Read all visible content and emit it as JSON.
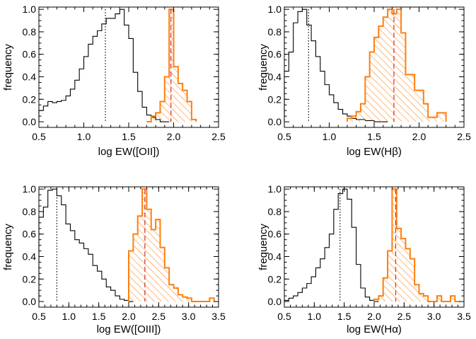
{
  "colors": {
    "black": "#000000",
    "orange": "#ff7f0e",
    "red": "#d62728"
  },
  "chart_data": [
    {
      "type": "histogram",
      "xlabel": "log EW([OII])",
      "ylabel": "frequency",
      "xlim": [
        0.5,
        2.5
      ],
      "ylim": [
        -0.05,
        1.02
      ],
      "xticks": [
        "0.5",
        "1.0",
        "1.5",
        "2.0",
        "2.5"
      ],
      "yticks": [
        "0.0",
        "0.2",
        "0.4",
        "0.6",
        "0.8",
        "1.0"
      ],
      "grid": false,
      "series": [
        {
          "x": [
            0.5,
            0.55,
            0.6,
            0.65,
            0.7,
            0.75,
            0.8,
            0.85,
            0.9,
            0.95,
            1.0,
            1.05,
            1.1,
            1.15,
            1.2,
            1.25,
            1.3,
            1.35,
            1.4,
            1.45,
            1.5,
            1.55,
            1.6,
            1.65,
            1.7,
            1.75,
            1.8,
            1.85,
            1.9
          ],
          "values": [
            0.1,
            0.14,
            0.18,
            0.17,
            0.18,
            0.19,
            0.23,
            0.29,
            0.37,
            0.47,
            0.58,
            0.69,
            0.76,
            0.81,
            0.87,
            0.92,
            0.92,
            0.96,
            1.0,
            0.86,
            0.74,
            0.44,
            0.27,
            0.13,
            0.06,
            0.04,
            0.02,
            0.0,
            0.0
          ],
          "style": "step",
          "color": "#000000"
        },
        {
          "x": [
            1.7,
            1.75,
            1.8,
            1.85,
            1.9,
            1.95,
            2.0,
            2.05,
            2.1,
            2.15,
            2.2
          ],
          "values": [
            0.0,
            0.05,
            0.08,
            0.18,
            0.4,
            1.0,
            0.49,
            0.34,
            0.28,
            0.18,
            0.02
          ],
          "style": "hatched-step",
          "color": "#ff7f0e"
        }
      ],
      "reference_lines": [
        {
          "x": 1.24,
          "style": "dotted",
          "color": "#000000"
        },
        {
          "x": 1.97,
          "style": "dashed",
          "color": "#d62728"
        }
      ]
    },
    {
      "type": "histogram",
      "xlabel": "log EW(Hβ)",
      "ylabel": "frequency",
      "xlim": [
        0.5,
        2.5
      ],
      "ylim": [
        -0.05,
        1.02
      ],
      "xticks": [
        "0.5",
        "1.0",
        "1.5",
        "2.0",
        "2.5"
      ],
      "yticks": [
        "0.0",
        "0.2",
        "0.4",
        "0.6",
        "0.8",
        "1.0"
      ],
      "grid": false,
      "series": [
        {
          "x": [
            0.5,
            0.55,
            0.6,
            0.65,
            0.7,
            0.75,
            0.8,
            0.85,
            0.9,
            0.95,
            1.0,
            1.05,
            1.1,
            1.15,
            1.2,
            1.25,
            1.3,
            1.35,
            1.4,
            1.45,
            1.5,
            1.55,
            1.6
          ],
          "values": [
            0.45,
            0.62,
            0.88,
            0.98,
            1.0,
            0.86,
            0.72,
            0.58,
            0.45,
            0.33,
            0.24,
            0.17,
            0.11,
            0.07,
            0.05,
            0.03,
            0.02,
            0.02,
            0.01,
            0.01,
            0.0,
            0.0,
            0.0
          ],
          "style": "step",
          "color": "#000000"
        },
        {
          "x": [
            1.2,
            1.25,
            1.3,
            1.35,
            1.4,
            1.45,
            1.5,
            1.55,
            1.6,
            1.65,
            1.7,
            1.75,
            1.8,
            1.85,
            1.9,
            1.95,
            2.0,
            2.05,
            2.1,
            2.15,
            2.2,
            2.25
          ],
          "values": [
            0.03,
            0.05,
            0.09,
            0.16,
            0.4,
            0.62,
            0.75,
            0.85,
            0.93,
            1.0,
            0.96,
            1.0,
            0.79,
            0.42,
            0.42,
            0.28,
            0.28,
            0.16,
            0.04,
            0.04,
            0.08,
            0.08
          ],
          "style": "hatched-step",
          "color": "#ff7f0e"
        }
      ],
      "reference_lines": [
        {
          "x": 0.77,
          "style": "dotted",
          "color": "#000000"
        },
        {
          "x": 1.72,
          "style": "dashed",
          "color": "#d62728"
        }
      ]
    },
    {
      "type": "histogram",
      "xlabel": "log EW([OIII])",
      "ylabel": "frequency",
      "xlim": [
        0.5,
        3.5
      ],
      "ylim": [
        -0.05,
        1.02
      ],
      "xticks": [
        "0.5",
        "1.0",
        "1.5",
        "2.0",
        "2.5",
        "3.0",
        "3.5"
      ],
      "yticks": [
        "0.0",
        "0.2",
        "0.4",
        "0.6",
        "0.8",
        "1.0"
      ],
      "grid": false,
      "series": [
        {
          "x": [
            0.5,
            0.575,
            0.65,
            0.725,
            0.8,
            0.875,
            0.95,
            1.025,
            1.1,
            1.175,
            1.25,
            1.325,
            1.4,
            1.475,
            1.55,
            1.625,
            1.7,
            1.775,
            1.85,
            1.925,
            2.0
          ],
          "values": [
            0.75,
            0.84,
            0.99,
            1.0,
            0.94,
            0.86,
            0.69,
            0.63,
            0.55,
            0.52,
            0.47,
            0.42,
            0.32,
            0.27,
            0.2,
            0.13,
            0.1,
            0.05,
            0.02,
            0.01,
            0.0
          ],
          "style": "step",
          "color": "#000000"
        },
        {
          "x": [
            2.0,
            2.075,
            2.15,
            2.225,
            2.3,
            2.375,
            2.45,
            2.525,
            2.6,
            2.675,
            2.75,
            2.825,
            2.9,
            2.975,
            3.05,
            3.125,
            3.2,
            3.275,
            3.35
          ],
          "values": [
            0.45,
            0.6,
            0.76,
            1.0,
            0.82,
            0.64,
            0.73,
            0.48,
            0.3,
            0.15,
            0.12,
            0.06,
            0.04,
            0.03,
            0.0,
            0.0,
            0.0,
            0.0,
            0.03
          ],
          "style": "hatched-step",
          "color": "#ff7f0e"
        }
      ],
      "reference_lines": [
        {
          "x": 0.8,
          "style": "dotted",
          "color": "#000000"
        },
        {
          "x": 2.27,
          "style": "dashed",
          "color": "#d62728"
        }
      ]
    },
    {
      "type": "histogram",
      "xlabel": "log EW(Hα)",
      "ylabel": "frequency",
      "xlim": [
        0.5,
        3.5
      ],
      "ylim": [
        -0.05,
        1.02
      ],
      "xticks": [
        "0.5",
        "1.0",
        "1.5",
        "2.0",
        "2.5",
        "3.0",
        "3.5"
      ],
      "yticks": [
        "0.0",
        "0.2",
        "0.4",
        "0.6",
        "0.8",
        "1.0"
      ],
      "grid": false,
      "series": [
        {
          "x": [
            0.5,
            0.575,
            0.65,
            0.725,
            0.8,
            0.875,
            0.95,
            1.025,
            1.1,
            1.175,
            1.25,
            1.325,
            1.4,
            1.475,
            1.55,
            1.625,
            1.7,
            1.775,
            1.85,
            1.925,
            2.0
          ],
          "values": [
            0.01,
            0.03,
            0.05,
            0.08,
            0.12,
            0.16,
            0.22,
            0.3,
            0.38,
            0.48,
            0.6,
            0.82,
            0.96,
            1.0,
            0.91,
            0.66,
            0.33,
            0.12,
            0.04,
            0.01,
            0.0
          ],
          "style": "step",
          "color": "#000000"
        },
        {
          "x": [
            2.0,
            2.075,
            2.15,
            2.225,
            2.3,
            2.375,
            2.45,
            2.525,
            2.6,
            2.675,
            2.75,
            2.825,
            2.9,
            2.975,
            3.05,
            3.125,
            3.2,
            3.275,
            3.35
          ],
          "values": [
            0.02,
            0.05,
            0.21,
            0.45,
            1.0,
            0.65,
            0.56,
            0.47,
            0.38,
            0.15,
            0.07,
            0.05,
            0.0,
            0.0,
            0.05,
            0.0,
            0.0,
            0.05,
            0.0
          ],
          "style": "hatched-step",
          "color": "#ff7f0e"
        }
      ],
      "reference_lines": [
        {
          "x": 1.43,
          "style": "dotted",
          "color": "#000000"
        },
        {
          "x": 2.36,
          "style": "dashed",
          "color": "#d62728"
        }
      ]
    }
  ]
}
